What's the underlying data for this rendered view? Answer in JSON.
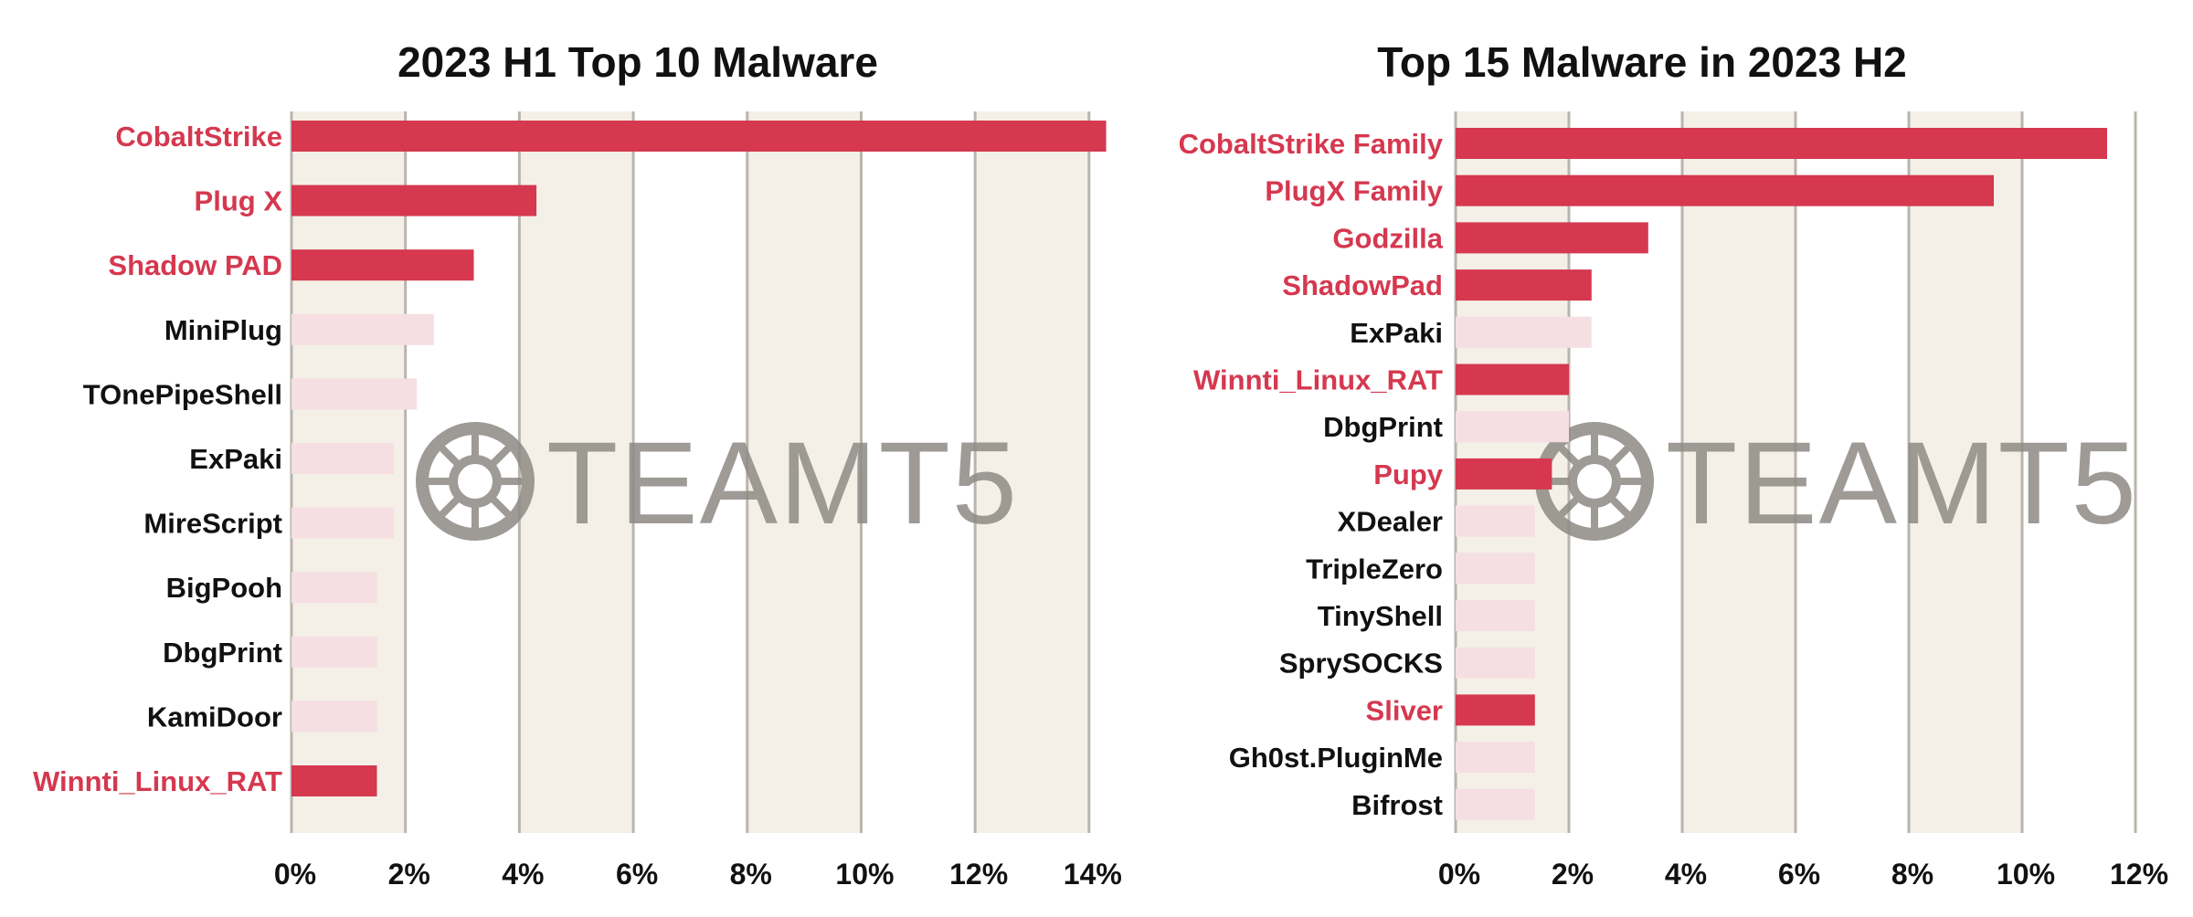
{
  "colors": {
    "highlight_bar": "#d5384f",
    "highlight_label": "#d5384f",
    "muted_bar": "#f5dfe3",
    "normal_label": "#111111",
    "band_fill": "#f4f0e7",
    "grid_line": "#b9b5ae",
    "watermark": "#8e8a85"
  },
  "watermark": {
    "text": "TEAMT5",
    "icon": "spiderweb-icon"
  },
  "chart_data": [
    {
      "type": "bar",
      "orientation": "horizontal",
      "title": "2023 H1 Top 10 Malware",
      "xlabel": "",
      "ylabel": "",
      "xlim": [
        0,
        14.5
      ],
      "x_ticks": [
        0,
        2,
        4,
        6,
        8,
        10,
        12,
        14
      ],
      "x_tick_labels": [
        "0%",
        "2%",
        "4%",
        "6%",
        "8%",
        "10%",
        "12%",
        "14%"
      ],
      "alternating_bands": true,
      "grid": true,
      "legend": "none",
      "categories": [
        "CobaltStrike",
        "Plug X",
        "Shadow PAD",
        "MiniPlug",
        "TOnePipeShell",
        "ExPaki",
        "MireScript",
        "BigPooh",
        "DbgPrint",
        "KamiDoor",
        "Winnti_Linux_RAT"
      ],
      "values": [
        14.3,
        4.3,
        3.2,
        2.5,
        2.2,
        1.8,
        1.8,
        1.5,
        1.5,
        1.5,
        1.5
      ],
      "highlighted": [
        true,
        true,
        true,
        false,
        false,
        false,
        false,
        false,
        false,
        false,
        true
      ]
    },
    {
      "type": "bar",
      "orientation": "horizontal",
      "title": "Top 15 Malware in 2023 H2",
      "xlabel": "",
      "ylabel": "",
      "xlim": [
        0,
        12
      ],
      "x_ticks": [
        0,
        2,
        4,
        6,
        8,
        10,
        12
      ],
      "x_tick_labels": [
        "0%",
        "2%",
        "4%",
        "6%",
        "8%",
        "10%",
        "12%"
      ],
      "alternating_bands": true,
      "grid": true,
      "legend": "none",
      "categories": [
        "CobaltStrike Family",
        "PlugX Family",
        "Godzilla",
        "ShadowPad",
        "ExPaki",
        "Winnti_Linux_RAT",
        "DbgPrint",
        "Pupy",
        "XDealer",
        "TripleZero",
        "TinyShell",
        "SprySOCKS",
        "Sliver",
        "Gh0st.PluginMe",
        "Bifrost"
      ],
      "values": [
        11.5,
        9.5,
        3.4,
        2.4,
        2.4,
        2.0,
        2.0,
        1.7,
        1.4,
        1.4,
        1.4,
        1.4,
        1.4,
        1.4,
        1.4
      ],
      "highlighted": [
        true,
        true,
        true,
        true,
        false,
        true,
        false,
        true,
        false,
        false,
        false,
        false,
        true,
        false,
        false
      ]
    }
  ]
}
